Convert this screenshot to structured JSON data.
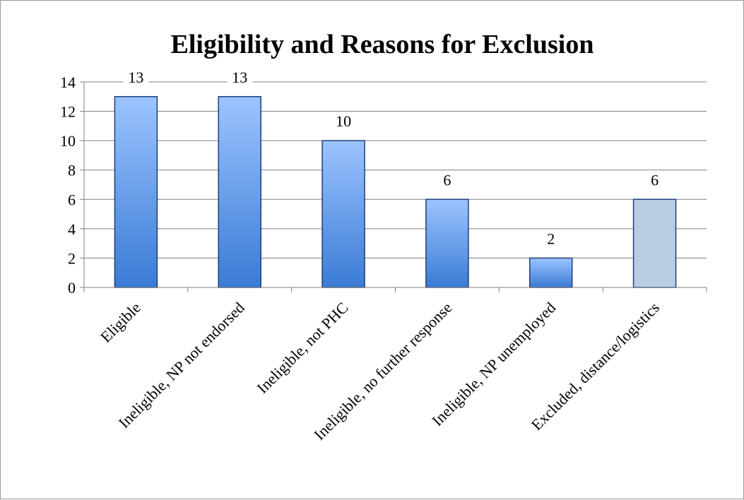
{
  "chart_data": {
    "type": "bar",
    "title": "Eligibility and Reasons for Exclusion",
    "xlabel": "",
    "ylabel": "",
    "categories": [
      "Eligible",
      "Ineligible, NP not endorsed",
      "Ineligible, not PHC",
      "Ineligible, no further response",
      "Ineligible, NP unemployed",
      "Excluded, distance/logistics"
    ],
    "values": [
      13,
      13,
      10,
      6,
      2,
      6
    ],
    "data_labels": [
      "13",
      "13",
      "10",
      "6",
      "2",
      "6"
    ],
    "y_ticks": [
      "0",
      "2",
      "4",
      "6",
      "8",
      "10",
      "12",
      "14"
    ],
    "ylim": [
      0,
      14
    ],
    "grid": "horizontal",
    "legend": "none",
    "colors": {
      "bar_top": "#9cc4ff",
      "bar_bottom": "#3a7bd5",
      "bar_border": "#1f3f7a",
      "last_bar_fill": "#b8cce4",
      "grid_line": "#808080",
      "axis_line": "#808080"
    }
  }
}
